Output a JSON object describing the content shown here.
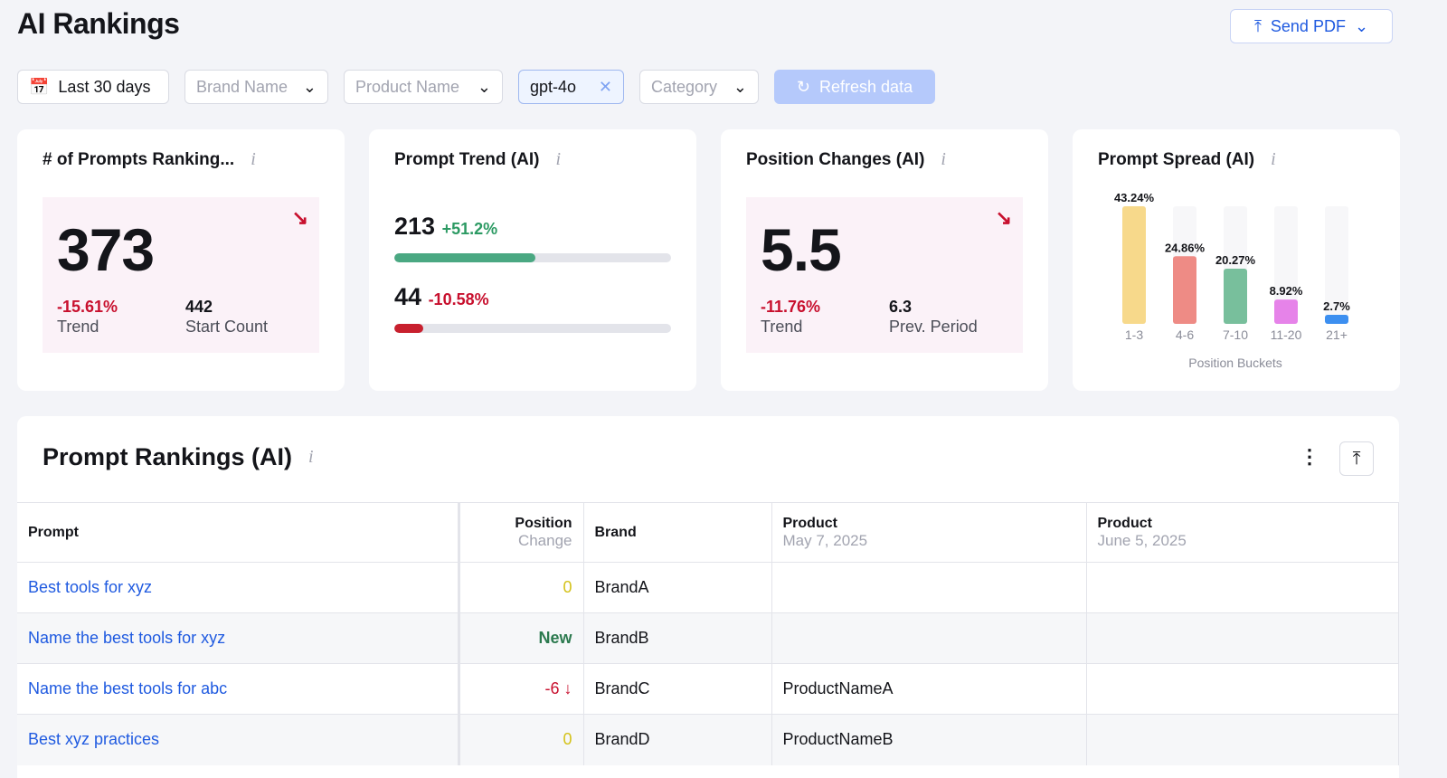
{
  "header": {
    "title": "AI Rankings",
    "send_pdf": "Send PDF"
  },
  "filters": {
    "date": "Last 30 days",
    "brand": "Brand Name",
    "product": "Product Name",
    "model_chip": "gpt-4o",
    "category": "Category",
    "refresh": "Refresh data"
  },
  "cards": {
    "prompts": {
      "title": "# of Prompts Ranking...",
      "value": "373",
      "trend": "-15.61%",
      "trend_label": "Trend",
      "start": "442",
      "start_label": "Start Count"
    },
    "trend": {
      "title": "Prompt Trend (AI)",
      "rows": [
        {
          "value": "213",
          "change": "+51.2%",
          "fill": 0.51,
          "color": "#4aa882"
        },
        {
          "value": "44",
          "change": "-10.58%",
          "fill": 0.106,
          "color": "#c8202e"
        }
      ]
    },
    "position": {
      "title": "Position Changes (AI)",
      "value": "5.5",
      "trend": "-11.76%",
      "trend_label": "Trend",
      "prev": "6.3",
      "prev_label": "Prev. Period"
    },
    "spread": {
      "title": "Prompt Spread (AI)"
    }
  },
  "chart_data": {
    "type": "bar",
    "xlabel": "Position Buckets",
    "categories": [
      "1-3",
      "4-6",
      "7-10",
      "11-20",
      "21+"
    ],
    "values": [
      43.24,
      24.86,
      20.27,
      8.92,
      2.7
    ],
    "labels": [
      "43.24%",
      "24.86%",
      "20.27%",
      "8.92%",
      "2.7%"
    ],
    "colors": [
      "#f7d98b",
      "#ee8b85",
      "#78bf9c",
      "#e683e9",
      "#3c8ff0"
    ],
    "ylim": [
      0,
      43.24
    ]
  },
  "table": {
    "title": "Prompt Rankings (AI)",
    "headers": {
      "prompt": "Prompt",
      "position": "Position",
      "position_sub": "Change",
      "brand": "Brand",
      "product1": "Product",
      "product1_date": "May 7, 2025",
      "product2": "Product",
      "product2_date": "June 5, 2025"
    },
    "rows": [
      {
        "prompt": "Best tools for xyz",
        "change": "0",
        "brand": "BrandA",
        "p1": "",
        "p2": ""
      },
      {
        "prompt": "Name the best tools for xyz",
        "change": "New",
        "brand": "BrandB",
        "p1": "",
        "p2": ""
      },
      {
        "prompt": "Name the best tools for abc",
        "change": "-6 ↓",
        "brand": "BrandC",
        "p1": "ProductNameA",
        "p2": ""
      },
      {
        "prompt": "Best xyz practices",
        "change": "0",
        "brand": "BrandD",
        "p1": "ProductNameB",
        "p2": ""
      }
    ]
  }
}
